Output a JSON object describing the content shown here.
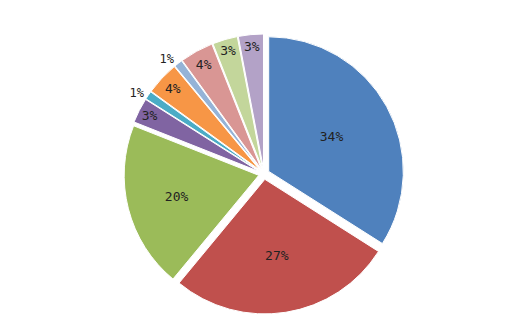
{
  "chart_data": {
    "type": "pie",
    "values": [
      34,
      27,
      20,
      3,
      1,
      4,
      1,
      4,
      3,
      3
    ],
    "value_labels": [
      "34%",
      "27%",
      "20%",
      "3%",
      "1%",
      "4%",
      "1%",
      "4%",
      "3%",
      "3%"
    ],
    "colors": [
      "#4f81bd",
      "#c0504d",
      "#9bbb59",
      "#8064a2",
      "#4bacc6",
      "#f79646",
      "#95b3d7",
      "#d99694",
      "#c3d69b",
      "#b3a2c7"
    ],
    "data_labels": true
  }
}
